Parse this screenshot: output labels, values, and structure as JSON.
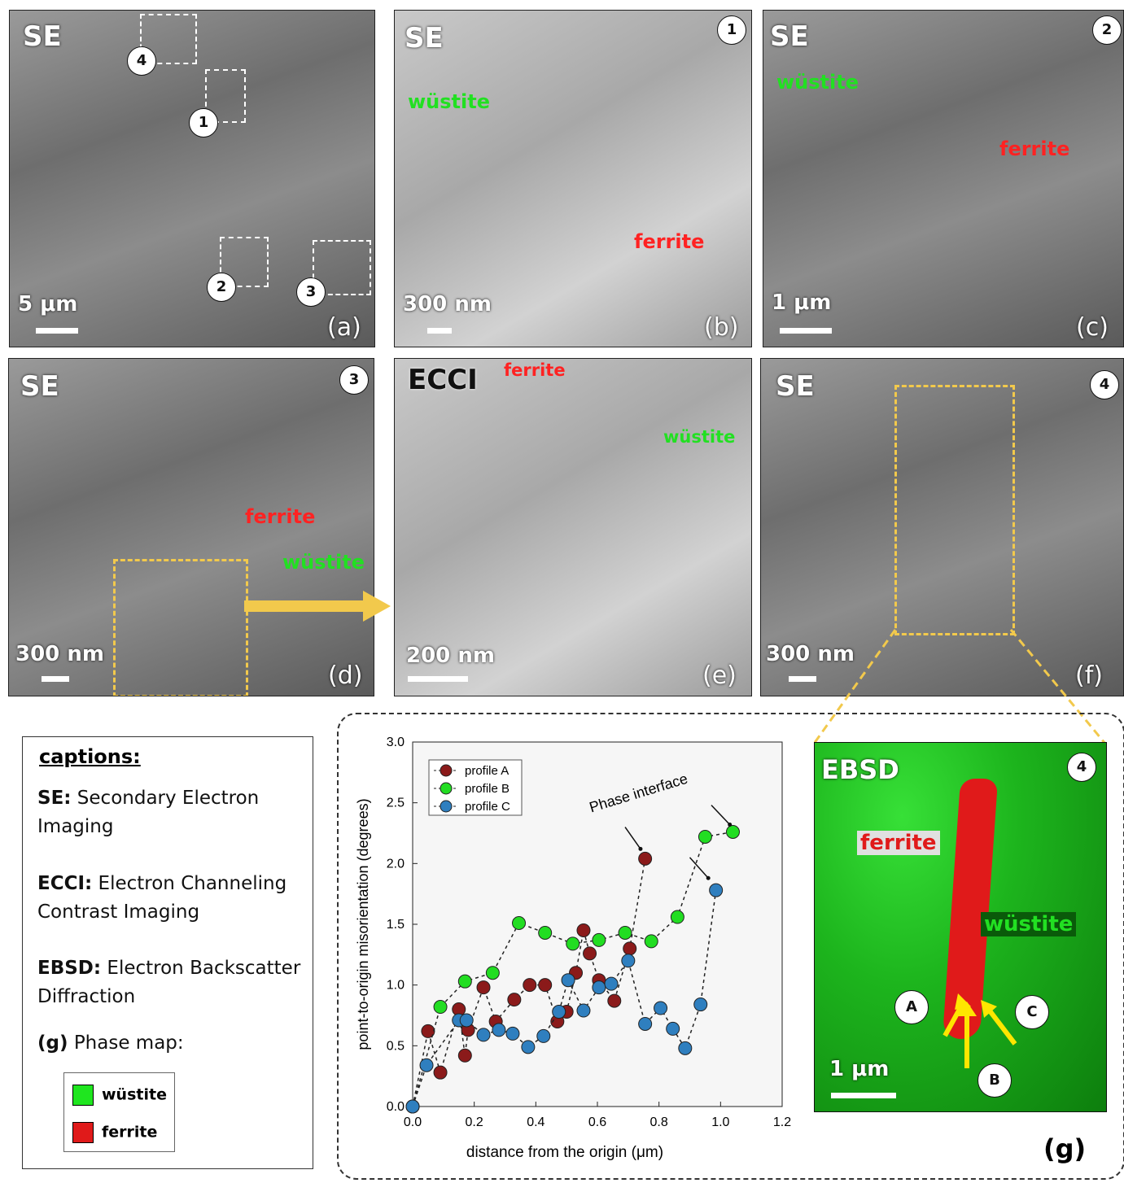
{
  "panels": {
    "a": {
      "mode": "SE",
      "scale": "5 μm",
      "letter": "(a)",
      "markers": [
        "1",
        "2",
        "3",
        "4"
      ]
    },
    "b": {
      "mode": "SE",
      "scale": "300 nm",
      "letter": "(b)",
      "number": "1",
      "labels": {
        "wustite": "wüstite",
        "ferrite": "ferrite"
      }
    },
    "c": {
      "mode": "SE",
      "scale": "1 μm",
      "letter": "(c)",
      "number": "2",
      "labels": {
        "wustite": "wüstite",
        "ferrite": "ferrite"
      }
    },
    "d": {
      "mode": "SE",
      "scale": "300 nm",
      "letter": "(d)",
      "number": "3",
      "labels": {
        "ferrite": "ferrite",
        "wustite": "wüstite"
      }
    },
    "e": {
      "mode": "ECCI",
      "scale": "200 nm",
      "letter": "(e)",
      "labels": {
        "ferrite": "ferrite",
        "wustite": "wüstite"
      }
    },
    "f": {
      "mode": "SE",
      "scale": "300 nm",
      "letter": "(f)",
      "number": "4"
    },
    "g": {
      "mode": "EBSD",
      "scale": "1 μm",
      "letter": "(g)",
      "number": "4",
      "labels": {
        "ferrite": "ferrite",
        "wustite": "wüstite"
      },
      "profiles": [
        "A",
        "B",
        "C"
      ]
    }
  },
  "captions": {
    "title": "captions:",
    "se_key": "SE:",
    "se_text": "Secondary Electron Imaging",
    "ecci_key": "ECCI:",
    "ecci_text": "Electron Channeling Contrast Imaging",
    "ebsd_key": "EBSD:",
    "ebsd_text": "Electron Backscatter Diffraction",
    "g_key": "(g)",
    "g_text": "Phase map:",
    "legend": [
      {
        "label": "wüstite",
        "color": "#1fe61f"
      },
      {
        "label": "ferrite",
        "color": "#e01a1a"
      }
    ]
  },
  "chart_data": {
    "type": "scatter",
    "xlabel": "distance from the origin (μm)",
    "ylabel": "point-to-origin misorientation (degrees)",
    "xlim": [
      0.0,
      1.2
    ],
    "ylim": [
      0.0,
      3.0
    ],
    "xticks": [
      "0.0",
      "0.2",
      "0.4",
      "0.6",
      "0.8",
      "1.0",
      "1.2"
    ],
    "yticks": [
      "0.0",
      "0.5",
      "1.0",
      "1.5",
      "2.0",
      "2.5",
      "3.0"
    ],
    "annotation": "Phase interface",
    "legend_position": "top-left",
    "series": [
      {
        "name": "profile A",
        "color": "#8b1a1a",
        "x": [
          0.0,
          0.05,
          0.09,
          0.15,
          0.17,
          0.18,
          0.23,
          0.27,
          0.33,
          0.38,
          0.43,
          0.47,
          0.5,
          0.53,
          0.555,
          0.575,
          0.605,
          0.655,
          0.705,
          0.755
        ],
        "y": [
          0.0,
          0.62,
          0.28,
          0.8,
          0.42,
          0.63,
          0.98,
          0.7,
          0.88,
          1.0,
          1.0,
          0.7,
          0.78,
          1.1,
          1.45,
          1.26,
          1.04,
          0.87,
          1.3,
          2.04
        ]
      },
      {
        "name": "profile B",
        "color": "#22dd22",
        "x": [
          0.0,
          0.09,
          0.17,
          0.26,
          0.345,
          0.43,
          0.52,
          0.605,
          0.69,
          0.775,
          0.86,
          0.95,
          1.04
        ],
        "y": [
          0.0,
          0.82,
          1.03,
          1.1,
          1.51,
          1.43,
          1.34,
          1.37,
          1.43,
          1.36,
          1.56,
          2.22,
          2.26
        ]
      },
      {
        "name": "profile C",
        "color": "#2f7fbf",
        "x": [
          0.0,
          0.045,
          0.15,
          0.175,
          0.23,
          0.28,
          0.325,
          0.375,
          0.425,
          0.475,
          0.505,
          0.555,
          0.605,
          0.645,
          0.7,
          0.755,
          0.805,
          0.845,
          0.885,
          0.935,
          0.985
        ],
        "y": [
          0.0,
          0.34,
          0.71,
          0.71,
          0.59,
          0.63,
          0.6,
          0.49,
          0.58,
          0.78,
          1.04,
          0.79,
          0.98,
          1.01,
          1.2,
          0.68,
          0.81,
          0.64,
          0.48,
          0.84,
          1.78
        ]
      }
    ]
  }
}
